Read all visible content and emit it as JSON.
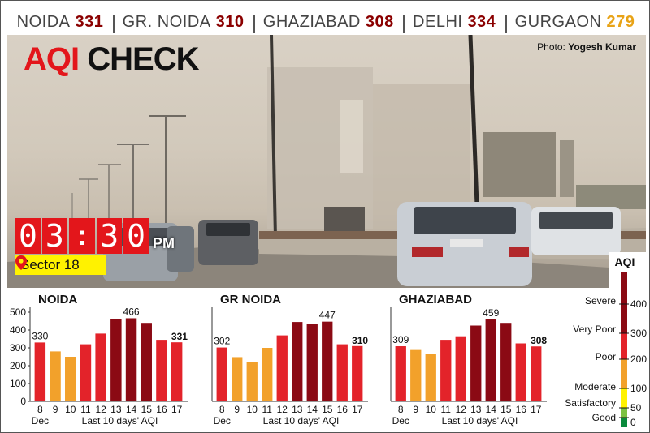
{
  "header": {
    "cities": [
      {
        "name": "NOIDA",
        "value": "331"
      },
      {
        "name": "GR. NOIDA",
        "value": "310"
      },
      {
        "name": "GHAZIABAD",
        "value": "308"
      },
      {
        "name": "DELHI",
        "value": "334"
      },
      {
        "name": "GURGAON",
        "value": "279"
      }
    ]
  },
  "photo": {
    "title_red": "AQI",
    "title_black": "CHECK",
    "credit_prefix": "Photo: ",
    "credit_name": "Yogesh Kumar",
    "time": {
      "h1": "0",
      "h2": "3",
      "m1": "3",
      "m2": "0",
      "sep": ":",
      "ampm": "PM"
    },
    "location": "Sector 18"
  },
  "colors": {
    "severe": "#8b0a14",
    "very_poor": "#e3232a",
    "poor": "#f2a12b",
    "moderate": "#fff200",
    "satisfactory": "#7cc242",
    "good": "#0a8a3c"
  },
  "chart_data": [
    {
      "type": "bar",
      "title": "NOIDA",
      "categories": [
        "8",
        "9",
        "10",
        "11",
        "12",
        "13",
        "14",
        "15",
        "16",
        "17"
      ],
      "values": [
        330,
        280,
        250,
        320,
        380,
        460,
        466,
        440,
        345,
        331
      ],
      "labels": {
        "0": "330",
        "6": "466",
        "9": "331"
      },
      "xlabel_left": "Dec",
      "xlabel": "Last 10 days' AQI",
      "yticks": [
        "0",
        "100",
        "200",
        "300",
        "400",
        "500"
      ],
      "ylim": [
        0,
        500
      ]
    },
    {
      "type": "bar",
      "title": "GR NOIDA",
      "categories": [
        "8",
        "9",
        "10",
        "11",
        "12",
        "13",
        "14",
        "15",
        "16",
        "17"
      ],
      "values": [
        302,
        248,
        222,
        300,
        370,
        445,
        435,
        447,
        320,
        310
      ],
      "labels": {
        "0": "302",
        "7": "447",
        "9": "310"
      },
      "xlabel_left": "Dec",
      "xlabel": "Last 10 days' AQI",
      "ylim": [
        0,
        500
      ]
    },
    {
      "type": "bar",
      "title": "GHAZIABAD",
      "categories": [
        "8",
        "9",
        "10",
        "11",
        "12",
        "13",
        "14",
        "15",
        "16",
        "17"
      ],
      "values": [
        309,
        288,
        268,
        345,
        365,
        425,
        459,
        440,
        325,
        308
      ],
      "labels": {
        "0": "309",
        "6": "459",
        "9": "308"
      },
      "xlabel_left": "Dec",
      "xlabel": "Last 10 days' AQI",
      "ylim": [
        0,
        500
      ]
    }
  ],
  "legend": {
    "title": "AQI",
    "categories": [
      "Severe",
      "Very Poor",
      "Poor",
      "Moderate",
      "Satisfactory",
      "Good"
    ],
    "ticks": [
      "400",
      "300",
      "200",
      "100",
      "50",
      "0"
    ]
  }
}
